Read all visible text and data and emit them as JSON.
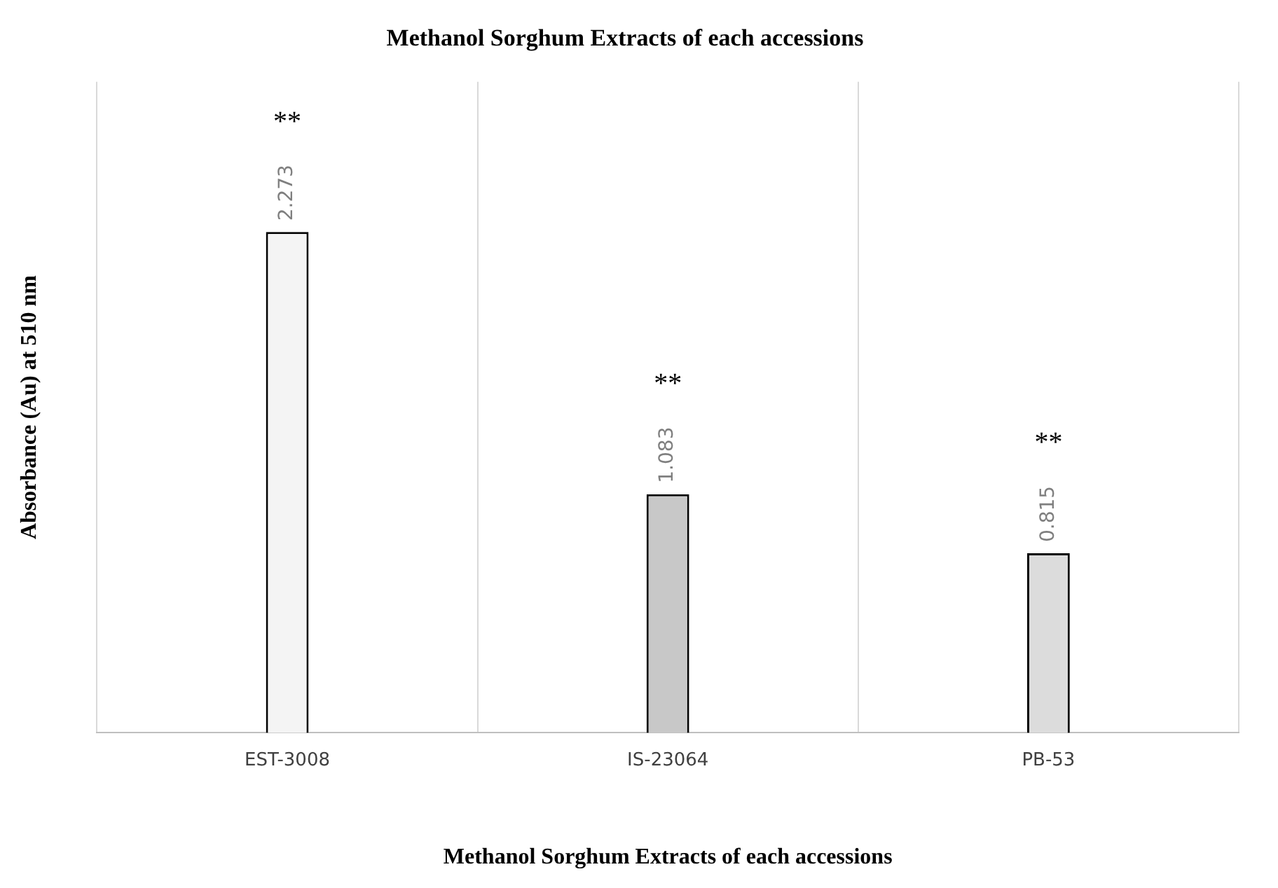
{
  "chart_data": {
    "type": "bar",
    "title": "Methanol Sorghum Extracts of each accessions",
    "xlabel": "Methanol Sorghum Extracts of each accessions",
    "ylabel": "Absorbance (Au) at 510 nm",
    "categories": [
      "EST-3008",
      "IS-23064",
      "PB-53"
    ],
    "values": [
      2.273,
      1.083,
      0.815
    ],
    "colors": [
      "#f4f4f4",
      "#c8c8c8",
      "#dcdcdc"
    ],
    "data_labels": true,
    "grid": "x",
    "legend": false,
    "annotations": [
      "**",
      "**",
      "**"
    ]
  }
}
